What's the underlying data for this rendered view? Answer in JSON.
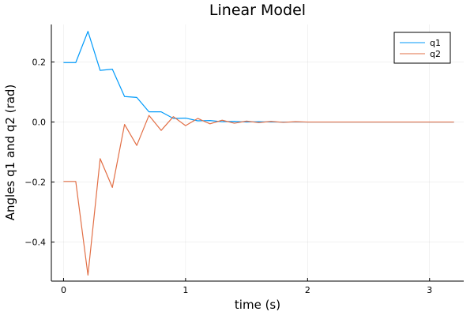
{
  "chart_data": {
    "type": "line",
    "title": "Linear Model",
    "xlabel": "time (s)",
    "ylabel": "Angles q1 and q2 (rad)",
    "xlim": [
      -0.1,
      3.28
    ],
    "ylim": [
      -0.53,
      0.325
    ],
    "xticks": [
      0,
      1,
      2,
      3
    ],
    "xtick_labels": [
      "0",
      "1",
      "2",
      "3"
    ],
    "yticks": [
      -0.4,
      -0.2,
      0.0,
      0.2
    ],
    "ytick_labels": [
      "−0.4",
      "−0.2",
      "0.0",
      "0.2"
    ],
    "grid": true,
    "legend_position": "top-right",
    "series": [
      {
        "name": "q1",
        "color": "#009AFA",
        "x": [
          0,
          0.1,
          0.2,
          0.3,
          0.4,
          0.5,
          0.6,
          0.7,
          0.8,
          0.9,
          1.0,
          1.1,
          1.2,
          1.3,
          1.4,
          1.5,
          1.6,
          1.7,
          1.8,
          1.9,
          2.0,
          2.1,
          2.2,
          2.3,
          2.4,
          2.5,
          2.6,
          2.7,
          2.8,
          2.9,
          3.0,
          3.1,
          3.2
        ],
        "y": [
          0.198,
          0.198,
          0.302,
          0.172,
          0.176,
          0.085,
          0.082,
          0.034,
          0.034,
          0.012,
          0.013,
          0.004,
          0.005,
          0.001,
          0.002,
          0.0,
          0.001,
          0.0,
          0.0,
          0.0,
          0.0,
          0.0,
          0.0,
          0.0,
          0.0,
          0.0,
          0.0,
          0.0,
          0.0,
          0.0,
          0.0,
          0.0,
          0.0
        ]
      },
      {
        "name": "q2",
        "color": "#E26F46",
        "x": [
          0,
          0.1,
          0.2,
          0.3,
          0.4,
          0.5,
          0.6,
          0.7,
          0.8,
          0.9,
          1.0,
          1.1,
          1.2,
          1.3,
          1.4,
          1.5,
          1.6,
          1.7,
          1.8,
          1.9,
          2.0,
          2.1,
          2.2,
          2.3,
          2.4,
          2.5,
          2.6,
          2.7,
          2.8,
          2.9,
          3.0,
          3.1,
          3.2
        ],
        "y": [
          -0.198,
          -0.198,
          -0.51,
          -0.122,
          -0.218,
          -0.008,
          -0.078,
          0.022,
          -0.028,
          0.018,
          -0.012,
          0.012,
          -0.006,
          0.006,
          -0.004,
          0.003,
          -0.002,
          0.002,
          -0.001,
          0.001,
          0.0,
          0.0,
          0.0,
          0.0,
          0.0,
          0.0,
          0.0,
          0.0,
          0.0,
          0.0,
          0.0,
          0.0,
          0.0
        ]
      }
    ]
  }
}
